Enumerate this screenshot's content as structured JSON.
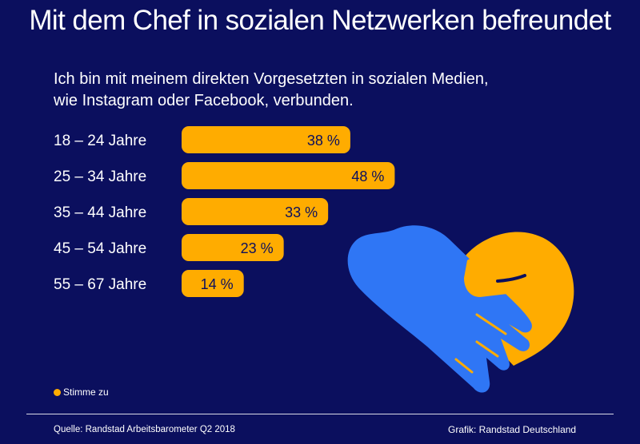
{
  "title": "Mit dem Chef in sozialen Netzwerken befreundet",
  "subtitle_line1": "Ich bin mit meinem direkten Vorgesetzten in sozialen Medien,",
  "subtitle_line2": "wie Instagram oder Facebook, verbunden.",
  "legend": {
    "label": "Stimme zu",
    "color": "#ffac00"
  },
  "footer": {
    "source": "Quelle: Randstad Arbeitsbarometer Q2 2018",
    "credit": "Grafik: Randstad Deutschland"
  },
  "colors": {
    "background": "#0b0f5e",
    "bar": "#ffac00",
    "hand_blue": "#2f76f5",
    "hand_yellow": "#ffac00"
  },
  "illustration": {
    "icon": "handshake-heart-icon"
  },
  "chart_data": {
    "type": "bar",
    "orientation": "horizontal",
    "categories": [
      "18 – 24 Jahre",
      "25 – 34 Jahre",
      "35 – 44 Jahre",
      "45 – 54 Jahre",
      "55 – 67 Jahre"
    ],
    "series": [
      {
        "name": "Stimme zu",
        "values": [
          38,
          48,
          33,
          23,
          14
        ]
      }
    ],
    "value_labels": [
      "38 %",
      "48 %",
      "33 %",
      "23 %",
      "14 %"
    ],
    "title": "Mit dem Chef in sozialen Netzwerken befreundet",
    "xlabel": "",
    "ylabel": "",
    "grid": false,
    "legend_position": "bottom-left"
  }
}
